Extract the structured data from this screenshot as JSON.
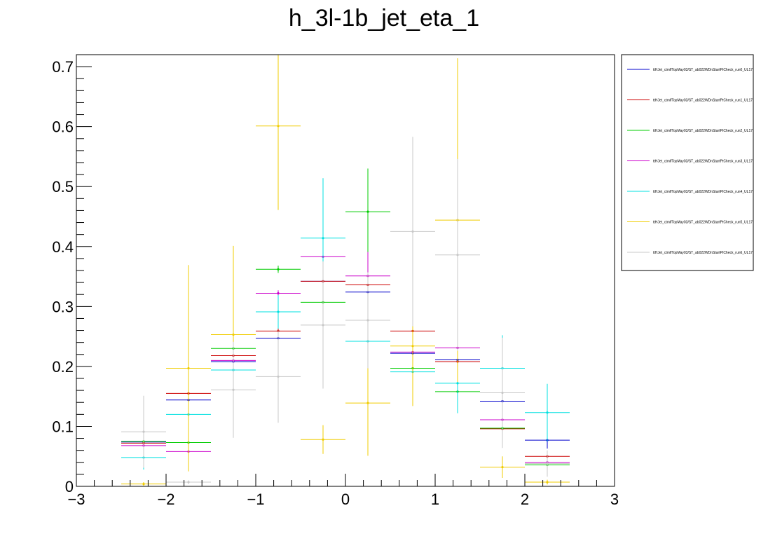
{
  "chart_data": {
    "type": "scatter",
    "title": "h_3l-1b_jet_eta_1",
    "xlabel": "",
    "ylabel": "",
    "xlim": [
      -3,
      3
    ],
    "ylim": [
      0,
      0.72
    ],
    "x_ticks": [
      -3,
      -2,
      -1,
      0,
      1,
      2,
      3
    ],
    "x_tick_labels": [
      "−3",
      "−2",
      "−1",
      "0",
      "1",
      "2",
      "3"
    ],
    "y_ticks": [
      0,
      0.1,
      0.2,
      0.3,
      0.4,
      0.5,
      0.6,
      0.7
    ],
    "y_tick_labels": [
      "0",
      "0.1",
      "0.2",
      "0.3",
      "0.4",
      "0.5",
      "0.6",
      "0.7"
    ],
    "grid": false,
    "legend_position": "right",
    "bin_edges": [
      -2.5,
      -2.0,
      -1.5,
      -1.0,
      -0.5,
      0.0,
      0.5,
      1.0,
      1.5,
      2.0,
      2.5
    ],
    "series": [
      {
        "name": "ttHJet_ctmlfTopMay03/ST_ab022WDnStartPtCheck_run0_UL17",
        "color": "#0000cc",
        "values": [
          0.074,
          0.144,
          0.208,
          0.247,
          0.342,
          0.324,
          0.222,
          0.211,
          0.142,
          0.077
        ],
        "errors": [
          0.003,
          0.004,
          0.004,
          0.005,
          0.006,
          0.006,
          0.005,
          0.005,
          0.004,
          0.014
        ]
      },
      {
        "name": "ttHJet_ctmlfTopMay03/ST_ab022WDnStartPtCheck_run1_UL17",
        "color": "#cc0000",
        "values": [
          0.072,
          0.155,
          0.218,
          0.259,
          0.342,
          0.336,
          0.259,
          0.208,
          0.096,
          0.05
        ],
        "errors": [
          0.003,
          0.004,
          0.004,
          0.005,
          0.005,
          0.005,
          0.005,
          0.005,
          0.004,
          0.007
        ]
      },
      {
        "name": "ttHJet_ctmlfTopMay03/ST_ab022WDnStartPtCheck_run2_UL17",
        "color": "#00cc00",
        "values": [
          0.075,
          0.073,
          0.23,
          0.362,
          0.307,
          0.458,
          0.197,
          0.158,
          0.097,
          0.036
        ],
        "errors": [
          0.003,
          0.005,
          0.005,
          0.006,
          0.006,
          0.072,
          0.006,
          0.004,
          0.004,
          0.004
        ]
      },
      {
        "name": "ttHJet_ctmlfTopMay03/ST_ab022WDnStartPtCheck_run3_UL17",
        "color": "#cc00cc",
        "values": [
          0.068,
          0.058,
          0.21,
          0.322,
          0.383,
          0.351,
          0.224,
          0.231,
          0.111,
          0.04
        ],
        "errors": [
          0.003,
          0.003,
          0.004,
          0.005,
          0.006,
          0.04,
          0.005,
          0.004,
          0.004,
          0.003
        ]
      },
      {
        "name": "ttHJet_ctmlfTopMay03/ST_ab022WDnStartPtCheck_run4_UL17",
        "color": "#00e0e0",
        "values": [
          0.048,
          0.12,
          0.194,
          0.291,
          0.414,
          0.242,
          0.191,
          0.172,
          0.197,
          0.123
        ],
        "errors": [
          0.02,
          0.004,
          0.004,
          0.028,
          0.1,
          0.004,
          0.005,
          0.05,
          0.055,
          0.048
        ]
      },
      {
        "name": "ttHJet_ctmlfTopMay03/ST_ab022WDnStartPtCheck_run5_UL17",
        "color": "#f0cc00",
        "values": [
          0.004,
          0.197,
          0.253,
          0.601,
          0.078,
          0.139,
          0.234,
          0.444,
          0.032,
          0.007
        ],
        "errors": [
          0.003,
          0.172,
          0.148,
          0.14,
          0.024,
          0.088,
          0.1,
          0.27,
          0.018,
          0.004
        ]
      },
      {
        "name": "ttHJet_ctmlfTopMay03/ST_ab022WDnStartPtCheck_run6_UL17",
        "color": "#c8c8c8",
        "values": [
          0.091,
          0.007,
          0.161,
          0.183,
          0.269,
          0.277,
          0.425,
          0.386,
          0.156,
          0.038
        ],
        "errors": [
          0.06,
          0.003,
          0.08,
          0.077,
          0.106,
          0.08,
          0.158,
          0.16,
          0.092,
          0.022
        ]
      }
    ]
  }
}
